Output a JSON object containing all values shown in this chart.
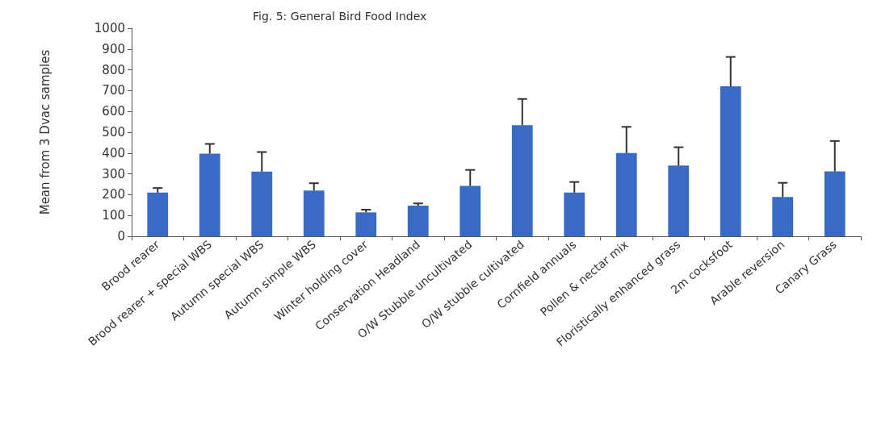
{
  "chart_data": {
    "type": "bar",
    "title": "Fig. 5: General Bird Food Index",
    "ylabel": "Mean from 3 Dvac samples",
    "categories": [
      "Brood rearer",
      "Brood rearer + special WBS",
      "Autumn special WBS",
      "Autumn simple WBS",
      "Winter holding cover",
      "Conservation Headland",
      "O/W Stubble uncultivated",
      "O/W stubble cultivated",
      "Cornfield annuals",
      "Pollen & nectar mix",
      "Floristically enhanced grass",
      "2m cocksfoot",
      "Arable reversion",
      "Canary Grass"
    ],
    "values": [
      210,
      397,
      311,
      220,
      115,
      147,
      242,
      534,
      210,
      400,
      340,
      721,
      189,
      312
    ],
    "errors": [
      [
        210,
        232
      ],
      [
        397,
        444
      ],
      [
        311,
        405
      ],
      [
        220,
        255
      ],
      [
        115,
        128
      ],
      [
        147,
        158
      ],
      [
        242,
        319
      ],
      [
        534,
        660
      ],
      [
        210,
        261
      ],
      [
        400,
        526
      ],
      [
        340,
        428
      ],
      [
        721,
        862
      ],
      [
        189,
        257
      ],
      [
        312,
        458
      ]
    ],
    "color": "#3a6bc4",
    "ylim": [
      0,
      1000
    ],
    "yticks": [
      0,
      100,
      200,
      300,
      400,
      500,
      600,
      700,
      800,
      900,
      1000
    ],
    "grid": false
  }
}
